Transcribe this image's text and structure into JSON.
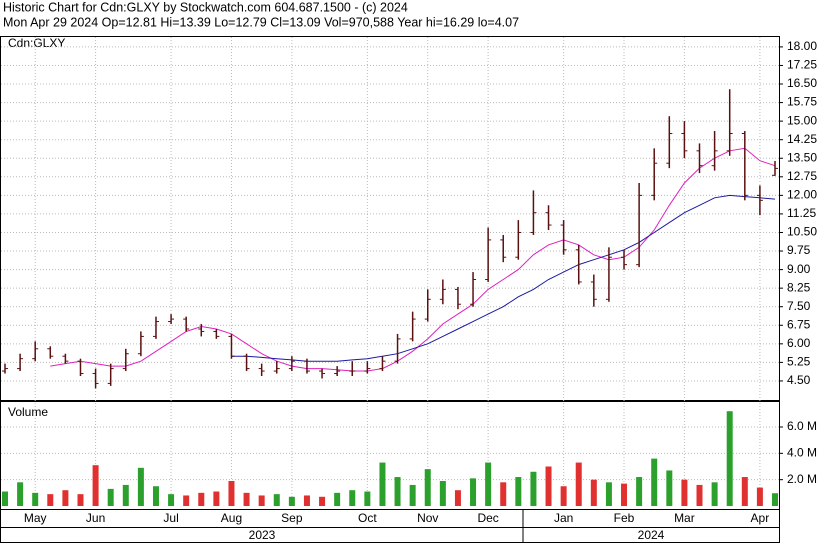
{
  "header": {
    "title": "Historic Chart for Cdn:GLXY by Stockwatch.com 604.687.1500 - (c) 2024",
    "quote": "Mon Apr 29 2024  Op=12.81  Hi=13.39  Lo=12.79  Cl=13.09  Vol=970,588  Year hi=16.29  lo=4.07"
  },
  "chart_data": [
    {
      "type": "ohlc",
      "label": "Cdn:GLXY",
      "color": "#5a1010",
      "categories": [
        null,
        null,
        "May",
        null,
        null,
        null,
        "Jun",
        null,
        null,
        null,
        null,
        "Jul",
        null,
        null,
        null,
        "Aug",
        null,
        null,
        null,
        "Sep",
        null,
        null,
        null,
        null,
        "Oct",
        null,
        null,
        null,
        "Nov",
        null,
        null,
        null,
        "Dec",
        null,
        null,
        null,
        null,
        "Jan",
        null,
        null,
        null,
        "Feb",
        null,
        null,
        null,
        "Mar",
        null,
        null,
        null,
        null,
        "Apr",
        null
      ],
      "open": [
        4.9,
        5.0,
        5.4,
        5.8,
        5.5,
        5.3,
        4.8,
        4.4,
        5.0,
        5.6,
        6.3,
        6.9,
        7.0,
        6.6,
        6.5,
        6.3,
        5.5,
        5.0,
        4.9,
        5.0,
        5.3,
        4.9,
        4.8,
        4.9,
        4.9,
        5.0,
        5.3,
        6.2,
        7.0,
        7.8,
        8.2,
        7.6,
        8.6,
        10.2,
        9.5,
        10.5,
        11.3,
        10.8,
        9.8,
        8.5,
        7.8,
        9.5,
        9.2,
        12.0,
        13.3,
        14.5,
        13.8,
        13.2,
        13.8,
        14.5,
        12.0,
        12.81
      ],
      "high": [
        5.2,
        5.6,
        6.1,
        5.9,
        5.6,
        5.4,
        5.0,
        5.2,
        5.8,
        6.5,
        7.1,
        7.2,
        7.1,
        6.8,
        6.6,
        6.4,
        5.6,
        5.2,
        5.3,
        5.5,
        5.4,
        5.0,
        5.1,
        5.3,
        5.3,
        5.5,
        6.4,
        7.3,
        8.2,
        8.6,
        8.3,
        8.9,
        10.7,
        10.4,
        11.0,
        12.2,
        11.6,
        11.0,
        10.0,
        8.8,
        9.9,
        9.8,
        12.5,
        13.9,
        15.2,
        15.0,
        14.1,
        14.6,
        16.29,
        14.6,
        12.4,
        13.39
      ],
      "low": [
        4.8,
        4.9,
        5.3,
        5.4,
        5.2,
        4.7,
        4.2,
        4.3,
        4.9,
        5.5,
        6.2,
        6.8,
        6.5,
        6.3,
        6.2,
        5.4,
        4.9,
        4.7,
        4.8,
        4.9,
        4.8,
        4.6,
        4.7,
        4.7,
        4.8,
        4.9,
        5.2,
        6.1,
        6.9,
        7.6,
        7.4,
        7.5,
        8.5,
        9.3,
        9.4,
        10.4,
        10.6,
        9.6,
        8.4,
        7.5,
        7.7,
        9.0,
        9.1,
        11.8,
        13.1,
        13.5,
        12.9,
        13.0,
        13.6,
        11.8,
        11.2,
        12.79
      ],
      "close": [
        5.0,
        5.4,
        5.8,
        5.5,
        5.3,
        4.8,
        4.4,
        5.0,
        5.6,
        6.3,
        6.9,
        7.0,
        6.6,
        6.5,
        6.3,
        5.5,
        5.0,
        4.9,
        5.0,
        5.3,
        4.9,
        4.8,
        4.9,
        4.9,
        5.0,
        5.3,
        6.2,
        7.0,
        7.8,
        8.2,
        7.6,
        8.6,
        10.2,
        9.5,
        10.5,
        11.3,
        10.8,
        9.8,
        8.5,
        7.8,
        9.5,
        9.2,
        12.0,
        13.3,
        14.5,
        13.8,
        13.2,
        13.8,
        14.5,
        12.0,
        11.8,
        13.09
      ],
      "series": [
        {
          "color": "#e020c0",
          "values": [
            null,
            null,
            null,
            5.1,
            5.2,
            5.3,
            5.2,
            5.1,
            5.1,
            5.3,
            5.7,
            6.1,
            6.5,
            6.7,
            6.6,
            6.4,
            6.0,
            5.6,
            5.3,
            5.1,
            5.0,
            5.0,
            4.95,
            4.9,
            4.9,
            5.0,
            5.3,
            5.7,
            6.2,
            6.8,
            7.2,
            7.6,
            8.2,
            8.6,
            9.0,
            9.6,
            10.0,
            10.2,
            10.0,
            9.6,
            9.4,
            9.5,
            9.9,
            10.6,
            11.6,
            12.5,
            13.1,
            13.5,
            13.8,
            13.9,
            13.4,
            13.2
          ]
        },
        {
          "color": "#1a1aa0",
          "values": [
            null,
            null,
            null,
            null,
            null,
            null,
            null,
            null,
            null,
            null,
            null,
            null,
            null,
            null,
            null,
            5.5,
            5.5,
            5.45,
            5.4,
            5.35,
            5.3,
            5.3,
            5.3,
            5.35,
            5.4,
            5.5,
            5.6,
            5.8,
            6.0,
            6.3,
            6.6,
            6.9,
            7.2,
            7.5,
            7.9,
            8.2,
            8.6,
            8.9,
            9.2,
            9.4,
            9.6,
            9.8,
            10.1,
            10.5,
            10.9,
            11.3,
            11.6,
            11.9,
            12.0,
            11.95,
            11.9,
            11.85
          ]
        }
      ],
      "ylim": [
        3.73,
        18.4
      ],
      "yticks": [
        {
          "value": 4.5,
          "label": "4.50"
        },
        {
          "value": 5.25,
          "label": "5.25"
        },
        {
          "value": 6,
          "label": "6.00"
        },
        {
          "value": 6.75,
          "label": "6.75"
        },
        {
          "value": 7.5,
          "label": "7.50"
        },
        {
          "value": 8.25,
          "label": "8.25"
        },
        {
          "value": 9,
          "label": "9.00"
        },
        {
          "value": 9.75,
          "label": "9.75"
        },
        {
          "value": 10.5,
          "label": "10.50"
        },
        {
          "value": 11.25,
          "label": "11.25"
        },
        {
          "value": 12,
          "label": "12.00"
        },
        {
          "value": 12.75,
          "label": "12.75"
        },
        {
          "value": 13.5,
          "label": "13.50"
        },
        {
          "value": 14.25,
          "label": "14.25"
        },
        {
          "value": 15,
          "label": "15.00"
        },
        {
          "value": 15.75,
          "label": "15.75"
        },
        {
          "value": 16.5,
          "label": "16.50"
        },
        {
          "value": 17.25,
          "label": "17.25"
        },
        {
          "value": 18,
          "label": "18.00"
        }
      ],
      "grid": true,
      "years": [
        "2023",
        "2024"
      ]
    },
    {
      "type": "volume",
      "label": "Volume",
      "up_color": "#2ca02c",
      "down_color": "#e03030",
      "values": [
        1100000,
        1800000,
        1000000,
        900000,
        1200000,
        900000,
        3100000,
        1300000,
        1600000,
        2900000,
        1500000,
        900000,
        800000,
        1000000,
        1100000,
        1900000,
        1000000,
        800000,
        900000,
        700000,
        800000,
        700000,
        1000000,
        1200000,
        1100000,
        3300000,
        2200000,
        1600000,
        2800000,
        1900000,
        1200000,
        2100000,
        3300000,
        1800000,
        2200000,
        2600000,
        3000000,
        1500000,
        3300000,
        2000000,
        1800000,
        1700000,
        2200000,
        3600000,
        2700000,
        2000000,
        1600000,
        1800000,
        7200000,
        2200000,
        1400000,
        970588
      ],
      "ylim": [
        0,
        7900000
      ],
      "yticks": [
        {
          "value": 2000000,
          "label": "2.0 M"
        },
        {
          "value": 4000000,
          "label": "4.0 M"
        },
        {
          "value": 6000000,
          "label": "6.0 M"
        }
      ],
      "grid": true
    }
  ]
}
